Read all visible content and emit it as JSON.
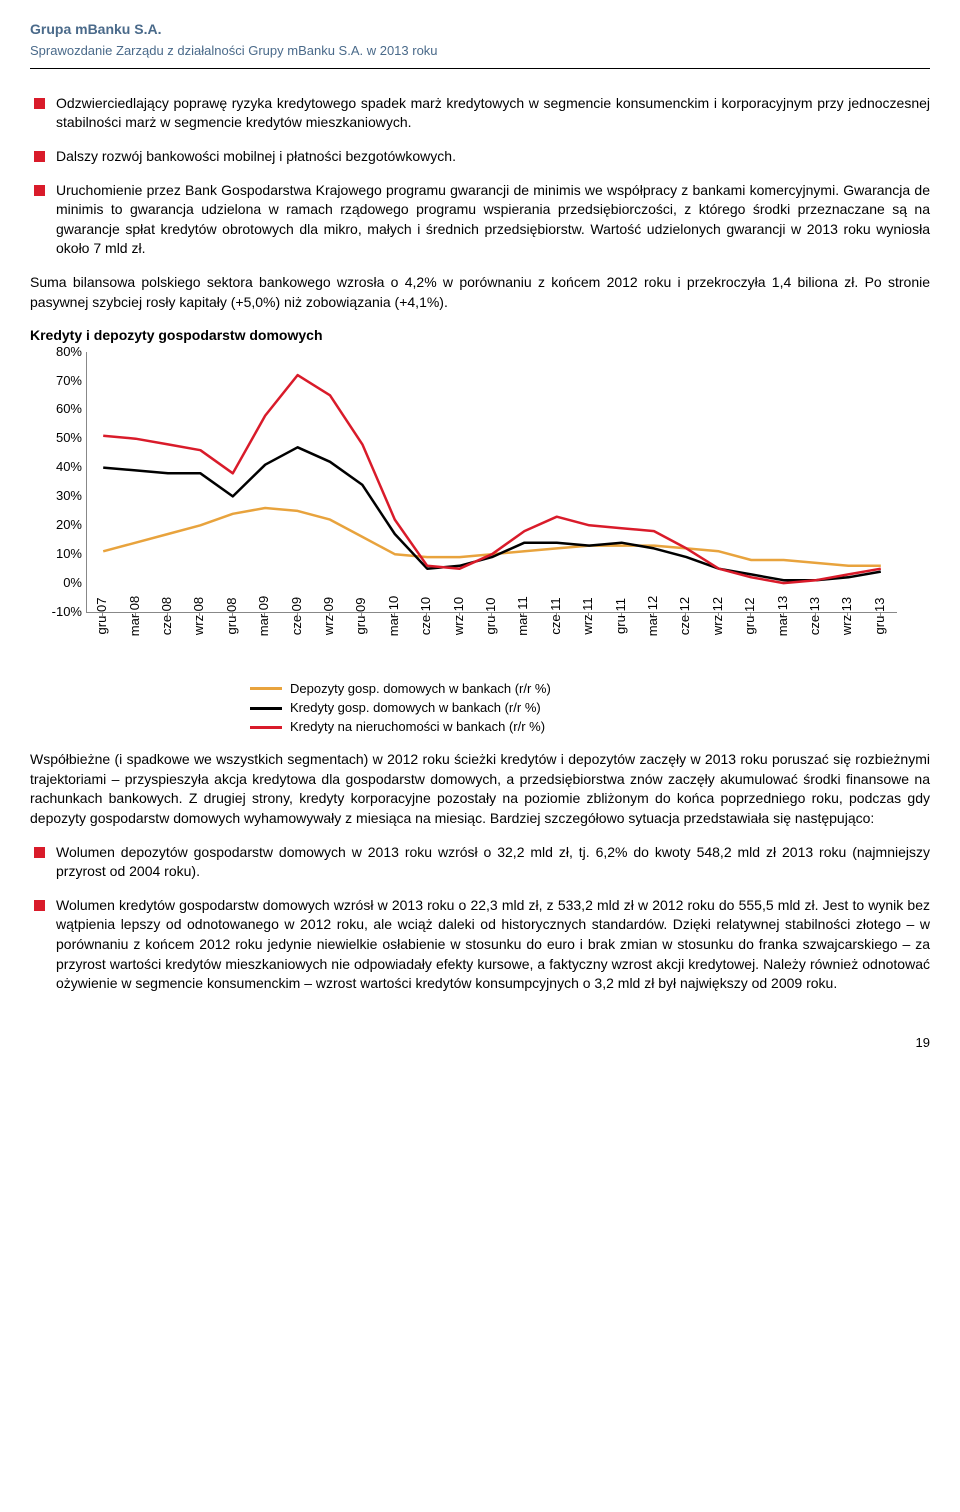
{
  "header": {
    "title": "Grupa mBanku S.A.",
    "subtitle": "Sprawozdanie Zarządu z działalności Grupy mBanku S.A. w 2013 roku"
  },
  "bullets_top": [
    "Odzwierciedlający poprawę ryzyka kredytowego spadek marż kredytowych w segmencie konsumenckim i korporacyjnym przy jednoczesnej stabilności marż w segmencie kredytów mieszkaniowych.",
    "Dalszy rozwój bankowości mobilnej i płatności bezgotówkowych.",
    "Uruchomienie przez Bank Gospodarstwa Krajowego programu gwarancji de minimis we współpracy z bankami komercyjnymi. Gwarancja de minimis to gwarancja udzielona w ramach rządowego programu wspierania przedsiębiorczości, z którego środki przeznaczane są na gwarancje spłat kredytów obrotowych dla mikro, małych i średnich przedsiębiorstw. Wartość udzielonych gwarancji w 2013 roku wyniosła około 7 mld zł."
  ],
  "para_mid": "Suma bilansowa polskiego sektora bankowego wzrosła o 4,2% w porównaniu z końcem 2012 roku i przekroczyła 1,4 biliona zł. Po stronie pasywnej szybciej rosły kapitały (+5,0%) niż zobowiązania (+4,1%).",
  "chart": {
    "title": "Kredyty i depozyty gospodarstw domowych",
    "ymin": -10,
    "ymax": 80,
    "yticks": [
      -10,
      0,
      10,
      20,
      30,
      40,
      50,
      60,
      70,
      80
    ],
    "ytick_labels": [
      "-10%",
      "0%",
      "10%",
      "20%",
      "30%",
      "40%",
      "50%",
      "60%",
      "70%",
      "80%"
    ],
    "xlabels": [
      "gru 07",
      "mar 08",
      "cze 08",
      "wrz 08",
      "gru 08",
      "mar 09",
      "cze 09",
      "wrz 09",
      "gru 09",
      "mar 10",
      "cze 10",
      "wrz 10",
      "gru 10",
      "mar 11",
      "cze 11",
      "wrz 11",
      "gru 11",
      "mar 12",
      "cze 12",
      "wrz 12",
      "gru 12",
      "mar 13",
      "cze 13",
      "wrz 13",
      "gru 13"
    ],
    "series": [
      {
        "name": "Depozyty gosp. domowych w bankach (r/r %)",
        "color": "#e8a33d",
        "width": 2.5,
        "values": [
          11,
          14,
          17,
          20,
          24,
          26,
          25,
          22,
          16,
          10,
          9,
          9,
          10,
          11,
          12,
          13,
          13,
          13,
          12,
          11,
          8,
          8,
          7,
          6,
          6
        ]
      },
      {
        "name": "Kredyty gosp. domowych w bankach (r/r %)",
        "color": "#000000",
        "width": 2.5,
        "values": [
          40,
          39,
          38,
          38,
          30,
          41,
          47,
          42,
          34,
          17,
          5,
          6,
          9,
          14,
          14,
          13,
          14,
          12,
          9,
          5,
          3,
          1,
          1,
          2,
          4
        ]
      },
      {
        "name": "Kredyty na nieruchomości w bankach (r/r %)",
        "color": "#d91b2a",
        "width": 2.5,
        "values": [
          51,
          50,
          48,
          46,
          38,
          58,
          72,
          65,
          48,
          22,
          6,
          5,
          10,
          18,
          23,
          20,
          19,
          18,
          12,
          5,
          2,
          0,
          1,
          3,
          5
        ]
      }
    ]
  },
  "para_after_chart": "Współbieżne (i spadkowe we wszystkich segmentach) w 2012 roku ścieżki kredytów i depozytów zaczęły w 2013 roku poruszać się rozbieżnymi trajektoriami – przyspieszyła akcja kredytowa dla gospodarstw domowych, a przedsiębiorstwa znów zaczęły akumulować środki finansowe na rachunkach bankowych. Z drugiej strony, kredyty korporacyjne pozostały na poziomie zbliżonym do końca poprzedniego roku, podczas gdy depozyty gospodarstw domowych wyhamowywały z miesiąca na miesiąc. Bardziej szczegółowo sytuacja przedstawiała się następująco:",
  "bullets_bottom": [
    "Wolumen depozytów gospodarstw domowych w 2013 roku wzrósł o 32,2 mld zł, tj. 6,2% do kwoty 548,2 mld zł 2013 roku (najmniejszy przyrost od 2004 roku).",
    "Wolumen kredytów gospodarstw domowych wzrósł w 2013 roku o 22,3 mld zł, z 533,2 mld zł w 2012 roku do 555,5 mld zł. Jest to wynik bez wątpienia lepszy od odnotowanego w 2012 roku, ale wciąż daleki od historycznych standardów. Dzięki relatywnej stabilności złotego – w porównaniu z końcem 2012 roku jedynie niewielkie osłabienie w stosunku do euro i brak zmian w stosunku do franka szwajcarskiego – za przyrost wartości kredytów mieszkaniowych nie odpowiadały efekty kursowe, a faktyczny wzrost akcji kredytowej. Należy również odnotować ożywienie w segmencie konsumenckim – wzrost wartości kredytów konsumpcyjnych o 3,2 mld zł był największy od 2009 roku."
  ],
  "page_number": "19"
}
